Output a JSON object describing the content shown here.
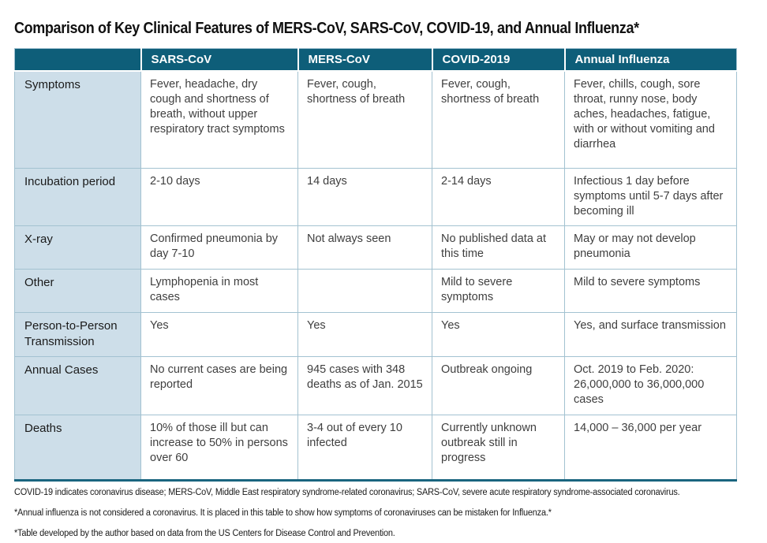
{
  "title": "Comparison of Key Clinical Features of MERS-CoV, SARS-CoV, COVID-19, and Annual Influenza*",
  "colors": {
    "header_bg": "#0E5E79",
    "label_bg": "#CDDEE9",
    "border": "#A3C2D1",
    "bottom_border": "#1A657F",
    "body_text": "#3F3F3F",
    "label_text": "#1A1A1A"
  },
  "table": {
    "columns": [
      "",
      "SARS-CoV",
      "MERS-CoV",
      "COVID-2019",
      "Annual Influenza"
    ],
    "rows": [
      {
        "label": "Symptoms",
        "cells": [
          "Fever, headache, dry cough and shortness of breath, without upper respiratory tract symptoms",
          "Fever, cough, shortness of breath",
          "Fever, cough, shortness of breath",
          "Fever, chills, cough, sore throat, runny nose, body aches, headaches, fatigue, with or without vomiting and diarrhea"
        ]
      },
      {
        "label": "Incubation period",
        "cells": [
          "2-10 days",
          "14 days",
          "2-14 days",
          "Infectious 1 day before symptoms until 5-7 days after becoming ill"
        ]
      },
      {
        "label": "X-ray",
        "cells": [
          "Confirmed pneumonia by day 7-10",
          "Not always seen",
          "No published data at this time",
          "May or may not develop pneumonia"
        ]
      },
      {
        "label": "Other",
        "cells": [
          "Lymphopenia in most cases",
          "",
          "Mild to severe symptoms",
          "Mild to severe symptoms"
        ]
      },
      {
        "label": "Person-to-Person Transmission",
        "cells": [
          "Yes",
          "Yes",
          "Yes",
          "Yes, and surface transmission"
        ]
      },
      {
        "label": "Annual Cases",
        "cells": [
          "No current cases are being reported",
          "945 cases with 348 deaths as of Jan. 2015",
          "Outbreak ongoing",
          "Oct. 2019 to Feb. 2020: 26,000,000 to 36,000,000 cases"
        ]
      },
      {
        "label": "Deaths",
        "cells": [
          "10% of those ill but can increase to 50% in persons over 60",
          "3-4 out of every 10 infected",
          "Currently unknown outbreak still in progress",
          "14,000 – 36,000 per year"
        ]
      }
    ]
  },
  "footnotes": [
    "COVID-19 indicates coronavirus disease; MERS-CoV, Middle East respiratory syndrome-related coronavirus; SARS-CoV, severe acute respiratory syndrome-associated coronavirus.",
    "*Annual influenza is not considered a coronavirus.  It is placed in this table to show how symptoms of coronaviruses can be mistaken for Influenza.*",
    "*Table developed by the author based on data from the US Centers for Disease Control and Prevention."
  ]
}
